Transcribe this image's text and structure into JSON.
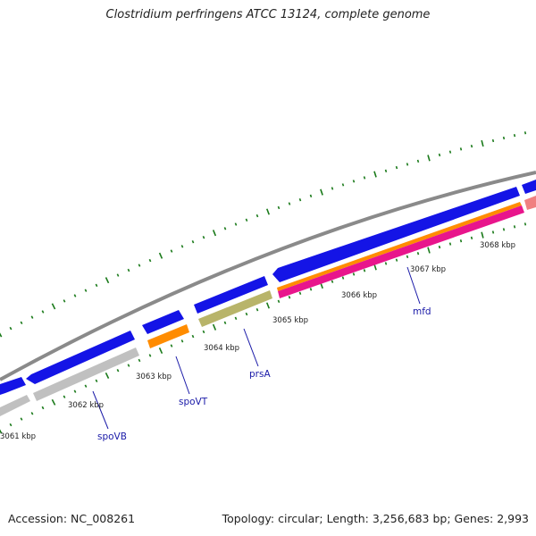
{
  "title": "Clostridium perfringens ATCC 13124, complete genome",
  "footer": {
    "accession": "Accession: NC_008261",
    "summary": "Topology: circular; Length: 3,256,683 bp; Genes: 2,993"
  },
  "scale_labels": [
    "3061 kbp",
    "3062 kbp",
    "3063 kbp",
    "3064 kbp",
    "3065 kbp",
    "3066 kbp",
    "3067 kbp",
    "3068 kbp"
  ],
  "gene_labels": [
    "spoVB",
    "spoVT",
    "prsA",
    "mfd"
  ],
  "colors": {
    "backbone": "#8a8a8a",
    "cds": "#1414e6",
    "gray_feature": "#c0c0c0",
    "orange_feature": "#ff8c00",
    "olive_feature": "#b8b46a",
    "magenta_feature": "#e8158c",
    "pink_feature": "#f08080",
    "tick": "#1a7a1a",
    "label": "#1a1aa8"
  }
}
